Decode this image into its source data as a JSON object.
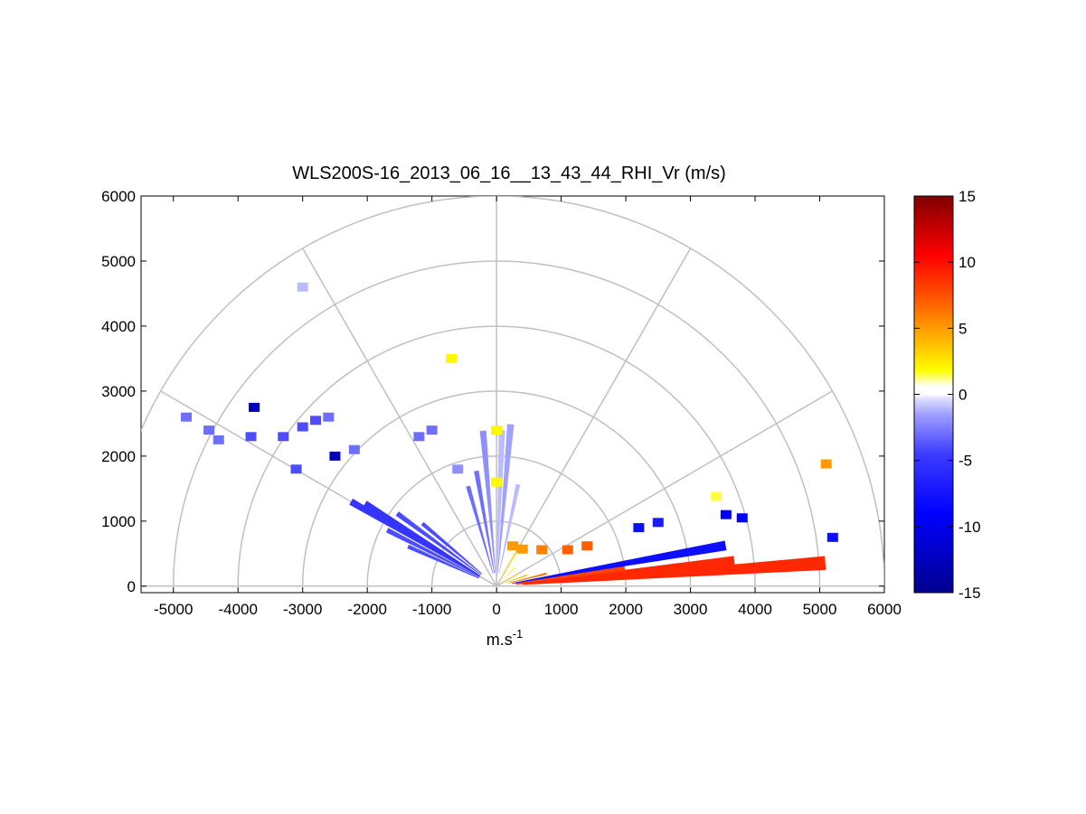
{
  "chart_data": {
    "type": "polar-rhi-scatter",
    "title": "WLS200S-16_2013_06_16__13_43_44_RHI_Vr (m/s)",
    "xlabel": "m.s",
    "xlabel_superscript": "-1",
    "ylabel": "",
    "xlim": [
      -5500,
      6000
    ],
    "ylim": [
      -100,
      6000
    ],
    "xticks": [
      "-5000",
      "-4000",
      "-3000",
      "-2000",
      "-1000",
      "0",
      "1000",
      "2000",
      "3000",
      "4000",
      "5000",
      "6000"
    ],
    "xtick_values": [
      -5000,
      -4000,
      -3000,
      -2000,
      -1000,
      0,
      1000,
      2000,
      3000,
      4000,
      5000,
      6000
    ],
    "yticks": [
      "0",
      "1000",
      "2000",
      "3000",
      "4000",
      "5000",
      "6000"
    ],
    "ytick_values": [
      0,
      1000,
      2000,
      3000,
      4000,
      5000,
      6000
    ],
    "polar_grid": {
      "ring_radii": [
        1000,
        2000,
        3000,
        4000,
        5000,
        6000
      ],
      "spoke_angles_deg": [
        0,
        30,
        60,
        90,
        120,
        150,
        180
      ],
      "color": "#c0c0c0"
    },
    "colorbar": {
      "min": -15,
      "max": 15,
      "ticks": [
        "15",
        "10",
        "5",
        "0",
        "-5",
        "-10",
        "-15"
      ],
      "tick_values": [
        15,
        10,
        5,
        0,
        -5,
        -10,
        -15
      ],
      "colormap": "blue-white-red"
    },
    "rays": [
      {
        "elev_deg": 4,
        "r_min": 400,
        "r_max": 5100,
        "vr": 9
      },
      {
        "elev_deg": 6,
        "r_min": 300,
        "r_max": 3700,
        "vr": 9
      },
      {
        "elev_deg": 8,
        "r_min": 300,
        "r_max": 2000,
        "vr": 8
      },
      {
        "elev_deg": 10,
        "r_min": 250,
        "r_max": 3600,
        "vr": -8
      },
      {
        "elev_deg": 14,
        "r_min": 200,
        "r_max": 800,
        "vr": 6
      },
      {
        "elev_deg": 20,
        "r_min": 150,
        "r_max": 500,
        "vr": 4
      },
      {
        "elev_deg": 30,
        "r_min": 100,
        "r_max": 400,
        "vr": 3
      },
      {
        "elev_deg": 45,
        "r_min": 100,
        "r_max": 400,
        "vr": 2
      },
      {
        "elev_deg": 60,
        "r_min": 100,
        "r_max": 600,
        "vr": 3
      },
      {
        "elev_deg": 78,
        "r_min": 200,
        "r_max": 1600,
        "vr": -1
      },
      {
        "elev_deg": 85,
        "r_min": 200,
        "r_max": 2500,
        "vr": -1.5
      },
      {
        "elev_deg": 88,
        "r_min": 200,
        "r_max": 2400,
        "vr": -1
      },
      {
        "elev_deg": 95,
        "r_min": 200,
        "r_max": 2400,
        "vr": -2
      },
      {
        "elev_deg": 100,
        "r_min": 200,
        "r_max": 1800,
        "vr": -3
      },
      {
        "elev_deg": 106,
        "r_min": 200,
        "r_max": 1600,
        "vr": -3
      },
      {
        "elev_deg": 140,
        "r_min": 300,
        "r_max": 1500,
        "vr": -4
      },
      {
        "elev_deg": 144,
        "r_min": 300,
        "r_max": 1900,
        "vr": -4
      },
      {
        "elev_deg": 148,
        "r_min": 300,
        "r_max": 2400,
        "vr": -5
      },
      {
        "elev_deg": 150,
        "r_min": 300,
        "r_max": 2600,
        "vr": -5
      },
      {
        "elev_deg": 153,
        "r_min": 300,
        "r_max": 1900,
        "vr": -4
      },
      {
        "elev_deg": 156,
        "r_min": 300,
        "r_max": 1500,
        "vr": -4
      }
    ],
    "patches": [
      {
        "x": -4800,
        "y": 2600,
        "vr": -3
      },
      {
        "x": -4450,
        "y": 2400,
        "vr": -3
      },
      {
        "x": -4300,
        "y": 2250,
        "vr": -3
      },
      {
        "x": -3750,
        "y": 2750,
        "vr": -13
      },
      {
        "x": -3800,
        "y": 2300,
        "vr": -4
      },
      {
        "x": -3300,
        "y": 2300,
        "vr": -4
      },
      {
        "x": -3000,
        "y": 2450,
        "vr": -4
      },
      {
        "x": -2800,
        "y": 2550,
        "vr": -4
      },
      {
        "x": -2600,
        "y": 2600,
        "vr": -3
      },
      {
        "x": -2500,
        "y": 2000,
        "vr": -13
      },
      {
        "x": -3100,
        "y": 1800,
        "vr": -4
      },
      {
        "x": -2200,
        "y": 2100,
        "vr": -3
      },
      {
        "x": -1000,
        "y": 2400,
        "vr": -3
      },
      {
        "x": -1200,
        "y": 2300,
        "vr": -3
      },
      {
        "x": -600,
        "y": 1800,
        "vr": -2
      },
      {
        "x": 5100,
        "y": 1880,
        "vr": 5
      },
      {
        "x": 5200,
        "y": 750,
        "vr": -8
      },
      {
        "x": 3400,
        "y": 1380,
        "vr": 1.5
      },
      {
        "x": 3550,
        "y": 1100,
        "vr": -9
      },
      {
        "x": 2500,
        "y": 980,
        "vr": -7
      },
      {
        "x": 2200,
        "y": 900,
        "vr": -8
      },
      {
        "x": 3800,
        "y": 1050,
        "vr": -9
      },
      {
        "x": 250,
        "y": 620,
        "vr": 5
      },
      {
        "x": 400,
        "y": 570,
        "vr": 5
      },
      {
        "x": 700,
        "y": 560,
        "vr": 6
      },
      {
        "x": 1100,
        "y": 560,
        "vr": 7
      },
      {
        "x": 1400,
        "y": 620,
        "vr": 7
      },
      {
        "x": 0,
        "y": 1600,
        "vr": 2
      },
      {
        "x": 0,
        "y": 2400,
        "vr": 2
      },
      {
        "x": -3000,
        "y": 4600,
        "vr": -1
      },
      {
        "x": -700,
        "y": 3500,
        "vr": 2
      }
    ]
  }
}
